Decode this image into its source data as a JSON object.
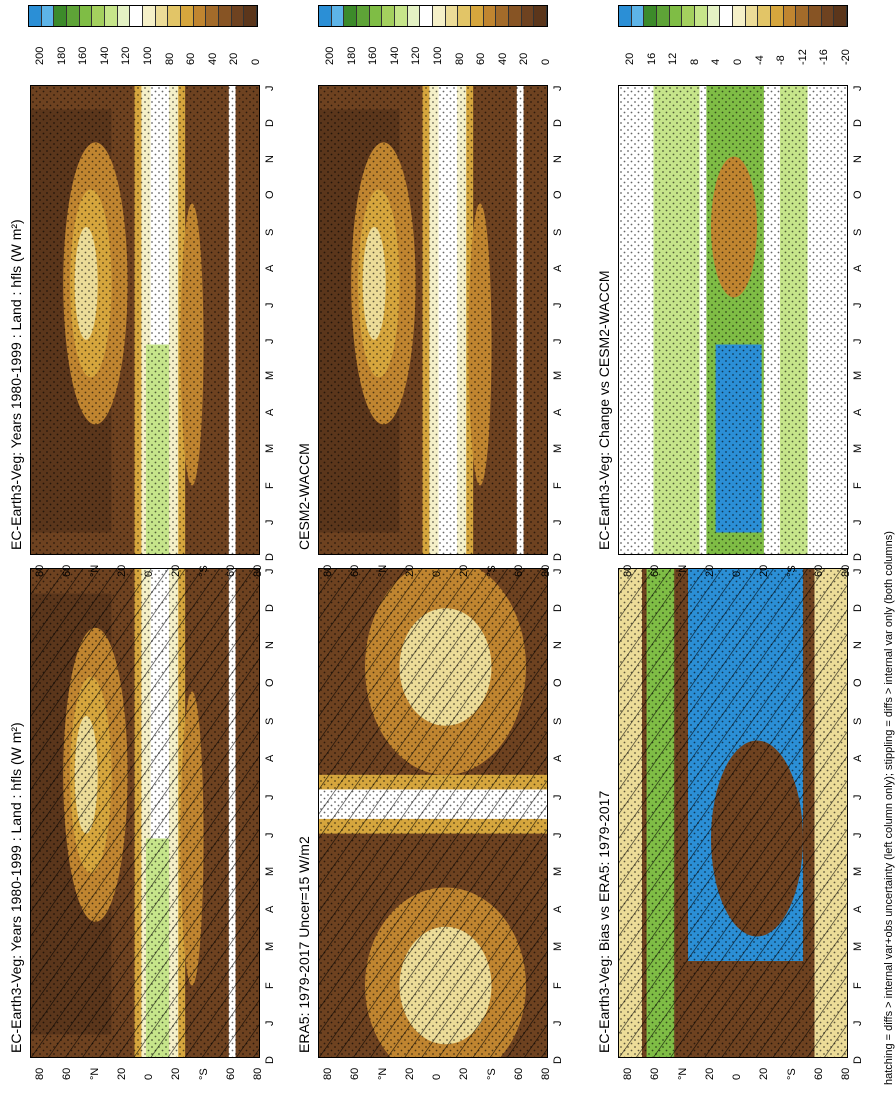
{
  "panels": [
    {
      "title": "EC-Earth3-Veg: Years 1980-1999 : Land : hfls (W m²)",
      "cbar": "abs",
      "pattern": "hatch-stipple"
    },
    {
      "title": "EC-Earth3-Veg: Years 1980-1999 : Land : hfls (W m²)",
      "cbar": "abs",
      "pattern": "stipple"
    },
    {
      "title": "ERA5: 1979-2017 Uncer=15 W/m2",
      "cbar": "abs",
      "pattern": "era5"
    },
    {
      "title": "CESM2-WACCM",
      "cbar": "abs",
      "pattern": "stipple"
    },
    {
      "title": "EC-Earth3-Veg: Bias vs ERA5: 1979-2017",
      "cbar": "diff",
      "pattern": "bias"
    },
    {
      "title": "EC-Earth3-Veg: Change vs CESM2-WACCM",
      "cbar": "diff",
      "pattern": "change"
    }
  ],
  "lat_ticks": [
    "80",
    "60",
    "°N",
    "20",
    "0",
    "20",
    "°S",
    "60",
    "80"
  ],
  "month_ticks": [
    "D",
    "J",
    "F",
    "M",
    "A",
    "M",
    "J",
    "J",
    "A",
    "S",
    "O",
    "N",
    "D",
    "J"
  ],
  "colorbars": {
    "abs": {
      "labels": [
        "200",
        "180",
        "160",
        "140",
        "120",
        "100",
        "80",
        "60",
        "40",
        "20",
        "0"
      ],
      "colors": [
        "#2b8fd6",
        "#5db4e8",
        "#3c8a2a",
        "#5ea437",
        "#7fbd45",
        "#a4d05e",
        "#c6e58a",
        "#e4f2c4",
        "#ffffff",
        "#f5f0c8",
        "#ecdc98",
        "#e2c567",
        "#d6a63d",
        "#c08530",
        "#a36b2a",
        "#875424",
        "#6e4220",
        "#5b361b"
      ]
    },
    "diff": {
      "labels": [
        "20",
        "16",
        "12",
        "8",
        "4",
        "0",
        "-4",
        "-8",
        "-12",
        "-16",
        "-20"
      ],
      "colors": [
        "#2b8fd6",
        "#5db4e8",
        "#3c8a2a",
        "#5ea437",
        "#7fbd45",
        "#a4d05e",
        "#c6e58a",
        "#e4f2c4",
        "#ffffff",
        "#f5f0c8",
        "#ecdc98",
        "#e2c567",
        "#d6a63d",
        "#c08530",
        "#a36b2a",
        "#875424",
        "#6e4220",
        "#5b361b"
      ]
    }
  },
  "footer": "hatching = diffs > internal var+obs uncertainty (left column only); stippling = diffs > internal var only (both columns)",
  "chart_data": [
    {
      "type": "heatmap",
      "title": "EC-Earth3-Veg: Years 1980-1999 : Land : hfls (W m²)",
      "x": "month",
      "y": "latitude",
      "colorbar": [
        0,
        200
      ]
    },
    {
      "type": "heatmap",
      "title": "EC-Earth3-Veg: Years 1980-1999 : Land : hfls (W m²)",
      "x": "month",
      "y": "latitude",
      "colorbar": [
        0,
        200
      ]
    },
    {
      "type": "heatmap",
      "title": "ERA5: 1979-2017 Uncer=15 W/m2",
      "x": "month",
      "y": "latitude",
      "colorbar": [
        0,
        200
      ]
    },
    {
      "type": "heatmap",
      "title": "CESM2-WACCM",
      "x": "month",
      "y": "latitude",
      "colorbar": [
        0,
        200
      ]
    },
    {
      "type": "heatmap",
      "title": "EC-Earth3-Veg: Bias vs ERA5: 1979-2017",
      "x": "month",
      "y": "latitude",
      "colorbar": [
        -20,
        20
      ]
    },
    {
      "type": "heatmap",
      "title": "EC-Earth3-Veg: Change vs CESM2-WACCM",
      "x": "month",
      "y": "latitude",
      "colorbar": [
        -20,
        20
      ]
    }
  ]
}
